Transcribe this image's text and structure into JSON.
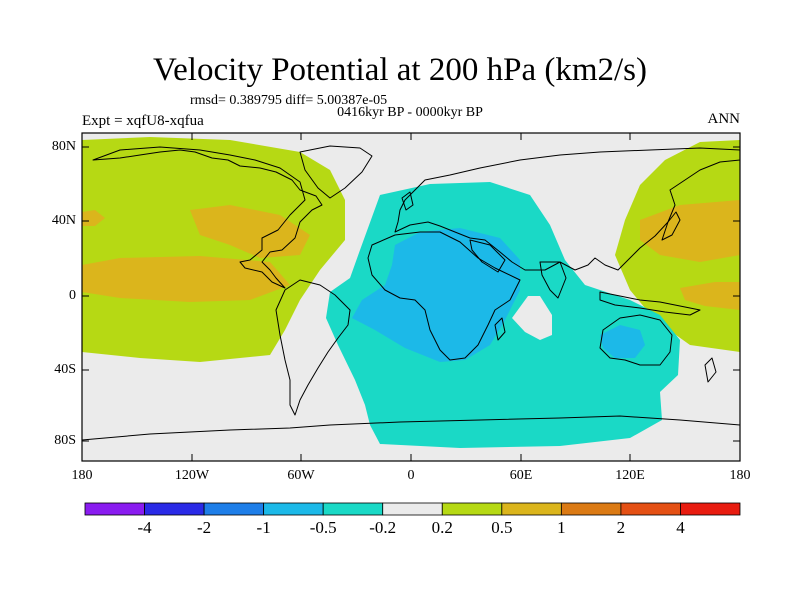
{
  "title": "Velocity Potential at 200 hPa (km2/s)",
  "stats": "rmsd= 0.389795 diff= 5.00387e-05",
  "period": "0416kyr BP - 0000kyr BP",
  "experiment": "Expt = xqfU8-xqfua",
  "season": "ANN",
  "lat_ticks": [
    "80N",
    "40N",
    "0",
    "40S",
    "80S"
  ],
  "lon_ticks": [
    "180",
    "120W",
    "60W",
    "0",
    "60E",
    "120E",
    "180"
  ],
  "colorbar": {
    "labels": [
      "-4",
      "-2",
      "-1",
      "-0.5",
      "-0.2",
      "0.2",
      "0.5",
      "1",
      "2",
      "4"
    ],
    "colors": [
      "#8a1cf0",
      "#2a2ae6",
      "#1e7ee8",
      "#1cb9e8",
      "#1ad9c6",
      "#ebebeb",
      "#b6d914",
      "#dbb51c",
      "#db7a14",
      "#e45014",
      "#e81c10"
    ]
  },
  "colors": {
    "land_outline": "#000000",
    "near_zero": "#ebebeb",
    "neg_weak": "#1ad9c6",
    "neg_mod": "#1cb9e8",
    "pos_weak": "#b6d914",
    "pos_mod": "#dbb51c"
  }
}
